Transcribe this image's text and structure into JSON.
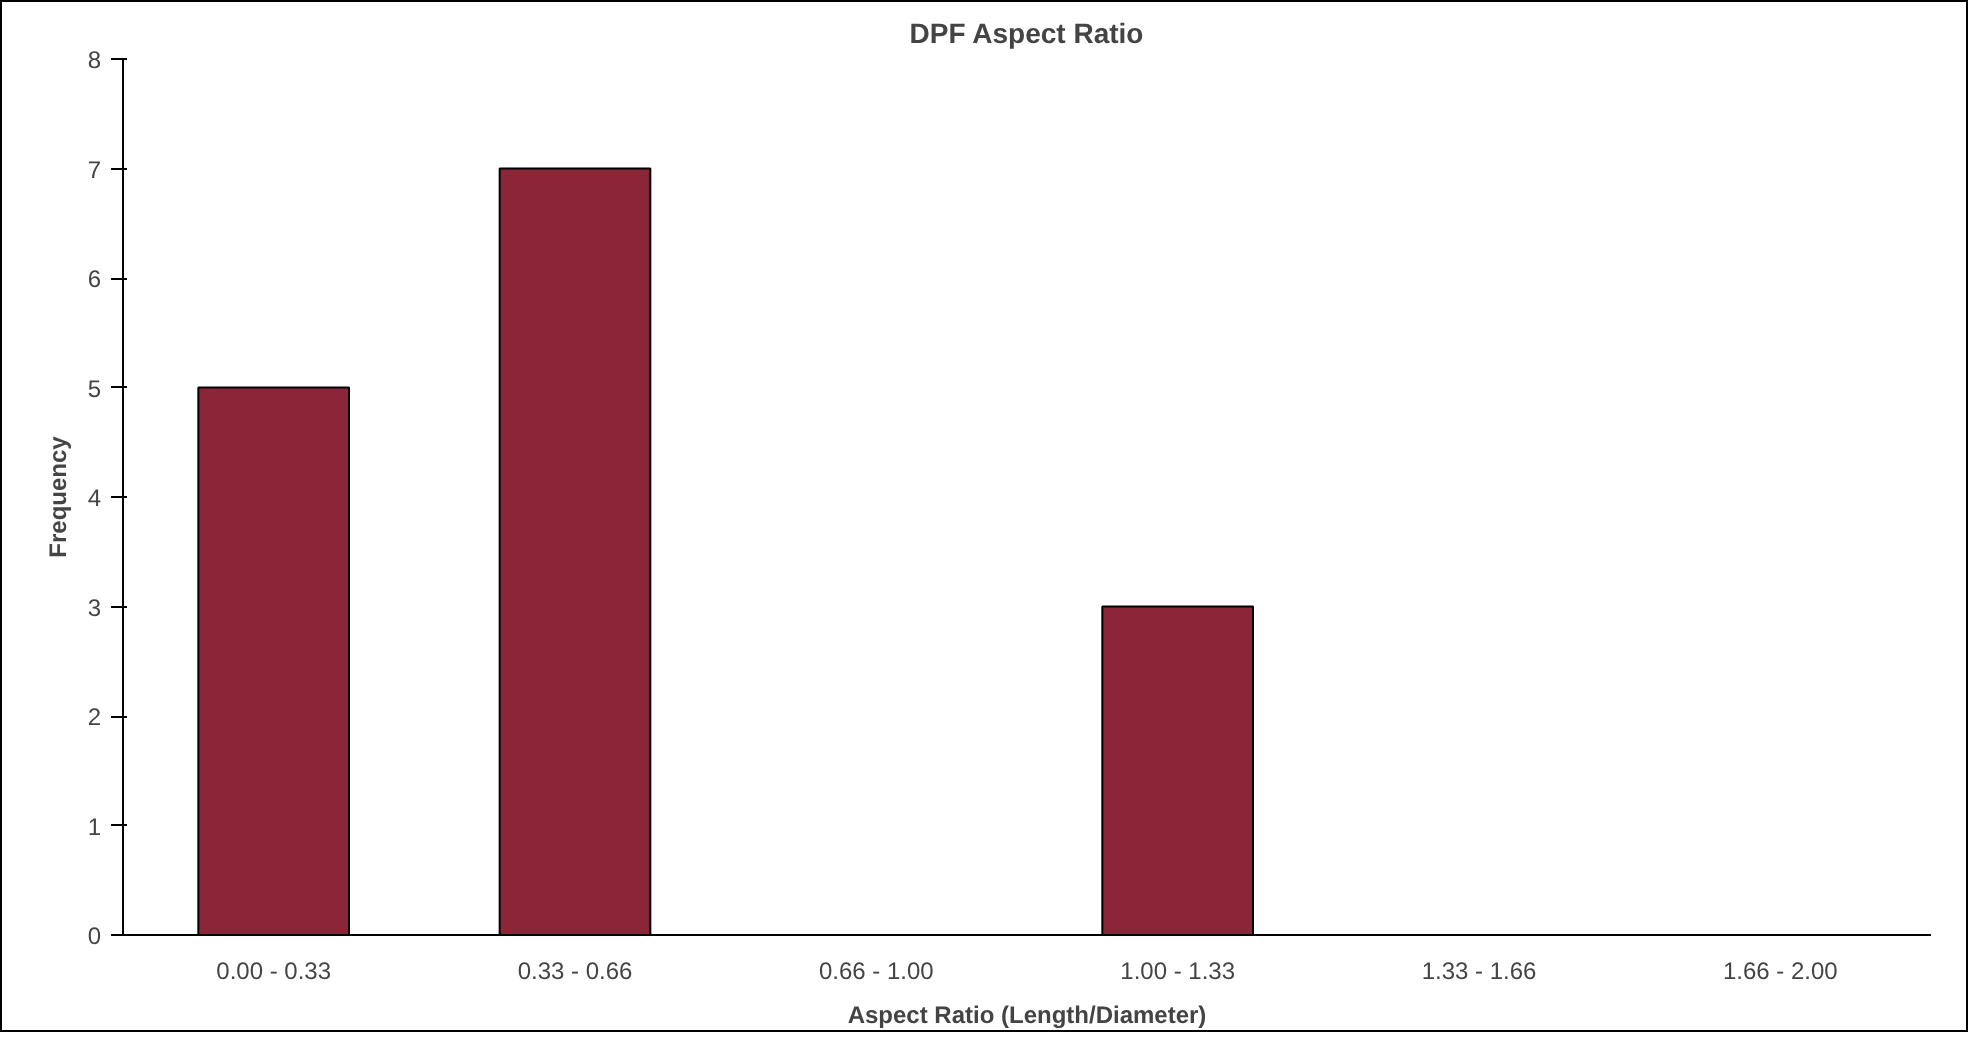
{
  "chart_data": {
    "type": "bar",
    "title": "DPF Aspect Ratio",
    "xlabel": "Aspect Ratio (Length/Diameter)",
    "ylabel": "Frequency",
    "categories": [
      "0.00 - 0.33",
      "0.33 - 0.66",
      "0.66 - 1.00",
      "1.00 - 1.33",
      "1.33 - 1.66",
      "1.66 - 2.00"
    ],
    "values": [
      5,
      7,
      0,
      3,
      0,
      0
    ],
    "color": "#8b2538",
    "ylim": [
      0,
      8
    ],
    "yticks": [
      0,
      1,
      2,
      3,
      4,
      5,
      6,
      7,
      8
    ],
    "grid": false
  }
}
